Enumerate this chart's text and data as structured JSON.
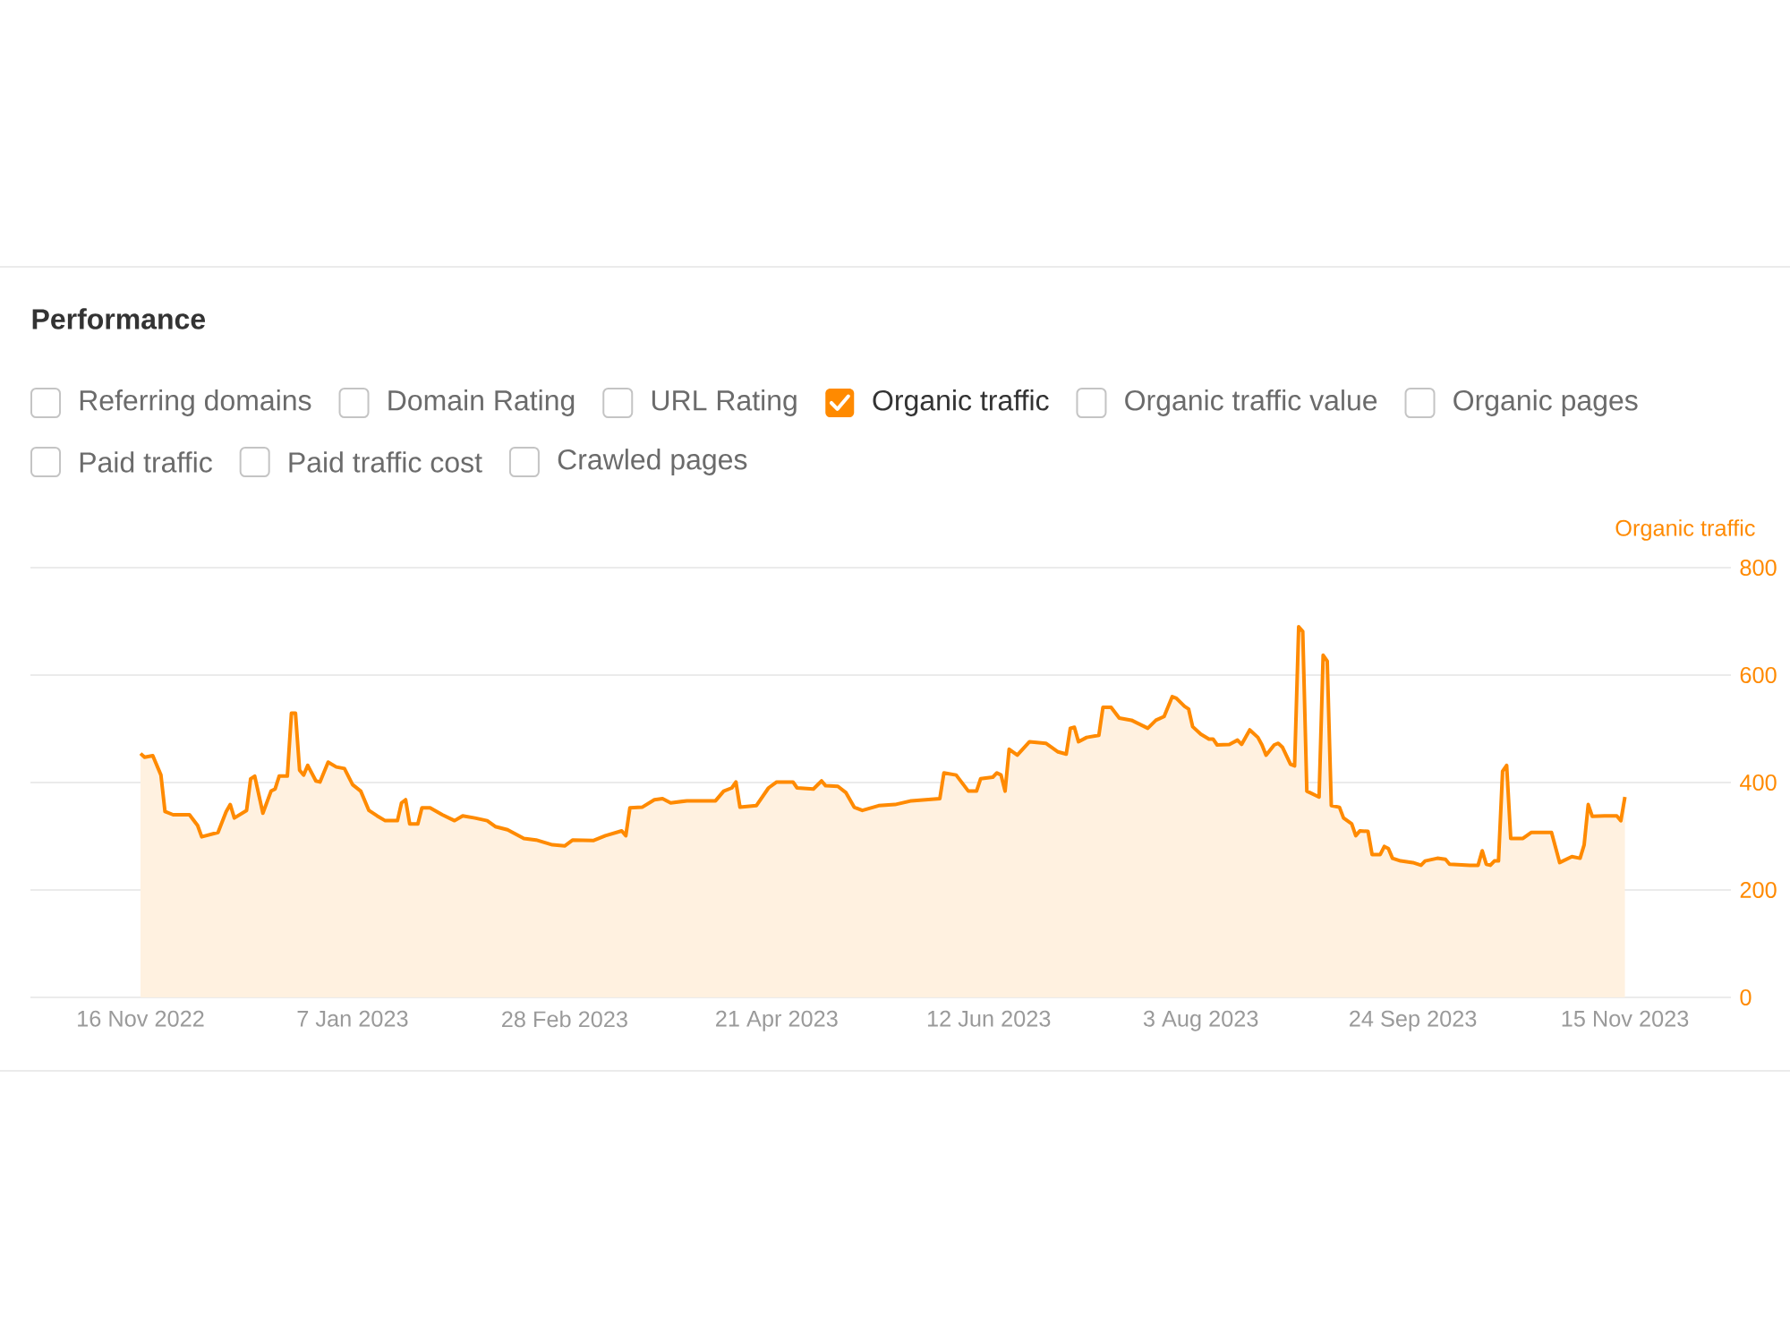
{
  "chart_data": {
    "type": "area",
    "title": "Performance",
    "ylabel": "Organic traffic",
    "annotations": [
      "Referring domains",
      "Domain Rating",
      "URL Rating",
      "Organic traffic value",
      "Organic pages",
      "Paid traffic",
      "Paid traffic cost",
      "Crawled pages"
    ],
    "legend": "top left",
    "grid": "y",
    "marker": "none",
    "xlim": [
      "2022-10-20",
      "2023-12-11"
    ],
    "xticks": [
      {
        "value": "2022-11-16",
        "label": "16 Nov 2022"
      },
      {
        "value": "2023-01-07",
        "label": "7 Jan 2023"
      },
      {
        "value": "2023-02-28",
        "label": "28 Feb 2023"
      },
      {
        "value": "2023-04-21",
        "label": "21 Apr 2023"
      },
      {
        "value": "2023-06-12",
        "label": "12 Jun 2023"
      },
      {
        "value": "2023-08-03",
        "label": "3 Aug 2023"
      },
      {
        "value": "2023-09-24",
        "label": "24 Sep 2023"
      },
      {
        "value": "2023-11-15",
        "label": "15 Nov 2023"
      }
    ],
    "ylim": [
      0,
      800
    ],
    "yticks": [
      0,
      200,
      400,
      600,
      800
    ],
    "x": [
      "2022-11-16",
      "2022-11-17",
      "2022-11-19",
      "2022-11-21",
      "2022-11-22",
      "2022-11-24",
      "2022-11-28",
      "2022-11-30",
      "2022-12-01",
      "2022-12-05",
      "2022-12-07",
      "2022-12-08",
      "2022-12-09",
      "2022-12-12",
      "2022-12-13",
      "2022-12-14",
      "2022-12-16",
      "2022-12-18",
      "2022-12-19",
      "2022-12-20",
      "2022-12-22",
      "2022-12-23",
      "2022-12-24",
      "2022-12-25",
      "2022-12-26",
      "2022-12-27",
      "2022-12-29",
      "2022-12-30",
      "2023-01-01",
      "2023-01-03",
      "2023-01-05",
      "2023-01-07",
      "2023-01-09",
      "2023-01-11",
      "2023-01-13",
      "2023-01-15",
      "2023-01-18",
      "2023-01-19",
      "2023-01-20",
      "2023-01-21",
      "2023-01-23",
      "2023-01-24",
      "2023-01-26",
      "2023-01-29",
      "2023-02-01",
      "2023-02-03",
      "2023-02-06",
      "2023-02-09",
      "2023-02-11",
      "2023-02-14",
      "2023-02-18",
      "2023-02-21",
      "2023-02-25",
      "2023-02-28",
      "2023-03-02",
      "2023-03-07",
      "2023-03-10",
      "2023-03-14",
      "2023-03-15",
      "2023-03-16",
      "2023-03-19",
      "2023-03-22",
      "2023-03-24",
      "2023-03-26",
      "2023-03-30",
      "2023-04-06",
      "2023-04-08",
      "2023-04-10",
      "2023-04-11",
      "2023-04-12",
      "2023-04-16",
      "2023-04-19",
      "2023-04-21",
      "2023-04-25",
      "2023-04-26",
      "2023-04-30",
      "2023-05-02",
      "2023-05-03",
      "2023-05-06",
      "2023-05-08",
      "2023-05-10",
      "2023-05-12",
      "2023-05-16",
      "2023-05-20",
      "2023-05-24",
      "2023-05-31",
      "2023-06-01",
      "2023-06-04",
      "2023-06-07",
      "2023-06-09",
      "2023-06-10",
      "2023-06-13",
      "2023-06-14",
      "2023-06-15",
      "2023-06-16",
      "2023-06-17",
      "2023-06-19",
      "2023-06-22",
      "2023-06-26",
      "2023-06-29",
      "2023-07-01",
      "2023-07-02",
      "2023-07-03",
      "2023-07-04",
      "2023-07-06",
      "2023-07-09",
      "2023-07-10",
      "2023-07-12",
      "2023-07-14",
      "2023-07-17",
      "2023-07-21",
      "2023-07-23",
      "2023-07-25",
      "2023-07-27",
      "2023-07-28",
      "2023-07-30",
      "2023-07-31",
      "2023-08-01",
      "2023-08-03",
      "2023-08-05",
      "2023-08-06",
      "2023-08-07",
      "2023-08-10",
      "2023-08-12",
      "2023-08-13",
      "2023-08-15",
      "2023-08-17",
      "2023-08-18",
      "2023-08-19",
      "2023-08-21",
      "2023-08-22",
      "2023-08-23",
      "2023-08-25",
      "2023-08-26",
      "2023-08-27",
      "2023-08-28",
      "2023-08-29",
      "2023-09-01",
      "2023-09-02",
      "2023-09-03",
      "2023-09-04",
      "2023-09-06",
      "2023-09-07",
      "2023-09-09",
      "2023-09-10",
      "2023-09-11",
      "2023-09-13",
      "2023-09-14",
      "2023-09-16",
      "2023-09-17",
      "2023-09-18",
      "2023-09-19",
      "2023-09-21",
      "2023-09-24",
      "2023-09-26",
      "2023-09-27",
      "2023-09-30",
      "2023-10-02",
      "2023-10-03",
      "2023-10-08",
      "2023-10-10",
      "2023-10-11",
      "2023-10-12",
      "2023-10-13",
      "2023-10-14",
      "2023-10-15",
      "2023-10-16",
      "2023-10-17",
      "2023-10-18",
      "2023-10-21",
      "2023-10-23",
      "2023-10-28",
      "2023-10-30",
      "2023-11-02",
      "2023-11-04",
      "2023-11-05",
      "2023-11-06",
      "2023-11-07",
      "2023-11-10",
      "2023-11-13",
      "2023-11-14",
      "2023-11-15"
    ],
    "series": [
      {
        "name": "Organic traffic",
        "color": "#ff8a00",
        "values": [
          454,
          447,
          450,
          414,
          346,
          340,
          340,
          320,
          299,
          307,
          346,
          359,
          334,
          348,
          407,
          412,
          343,
          384,
          388,
          412,
          412,
          529,
          529,
          423,
          414,
          432,
          403,
          401,
          438,
          429,
          426,
          396,
          384,
          348,
          338,
          329,
          329,
          362,
          368,
          323,
          323,
          353,
          353,
          340,
          329,
          338,
          334,
          329,
          318,
          312,
          296,
          293,
          284,
          282,
          293,
          292,
          301,
          310,
          301,
          353,
          354,
          368,
          370,
          362,
          366,
          366,
          384,
          390,
          401,
          354,
          357,
          390,
          401,
          401,
          390,
          388,
          403,
          394,
          393,
          381,
          354,
          348,
          357,
          359,
          366,
          370,
          418,
          414,
          384,
          384,
          407,
          410,
          418,
          414,
          384,
          462,
          451,
          476,
          473,
          457,
          453,
          501,
          503,
          476,
          484,
          488,
          540,
          540,
          520,
          516,
          501,
          516,
          523,
          560,
          557,
          542,
          537,
          504,
          490,
          481,
          481,
          470,
          471,
          479,
          471,
          498,
          484,
          470,
          451,
          470,
          473,
          466,
          434,
          431,
          690,
          681,
          384,
          373,
          637,
          626,
          357,
          354,
          334,
          323,
          301,
          310,
          309,
          266,
          266,
          281,
          277,
          259,
          254,
          251,
          246,
          254,
          259,
          257,
          248,
          246,
          246,
          273,
          248,
          246,
          254,
          254,
          421,
          432,
          296,
          296,
          307,
          307,
          251,
          262,
          259,
          284,
          359,
          337,
          338,
          338,
          329,
          373
        ]
      }
    ]
  }
}
